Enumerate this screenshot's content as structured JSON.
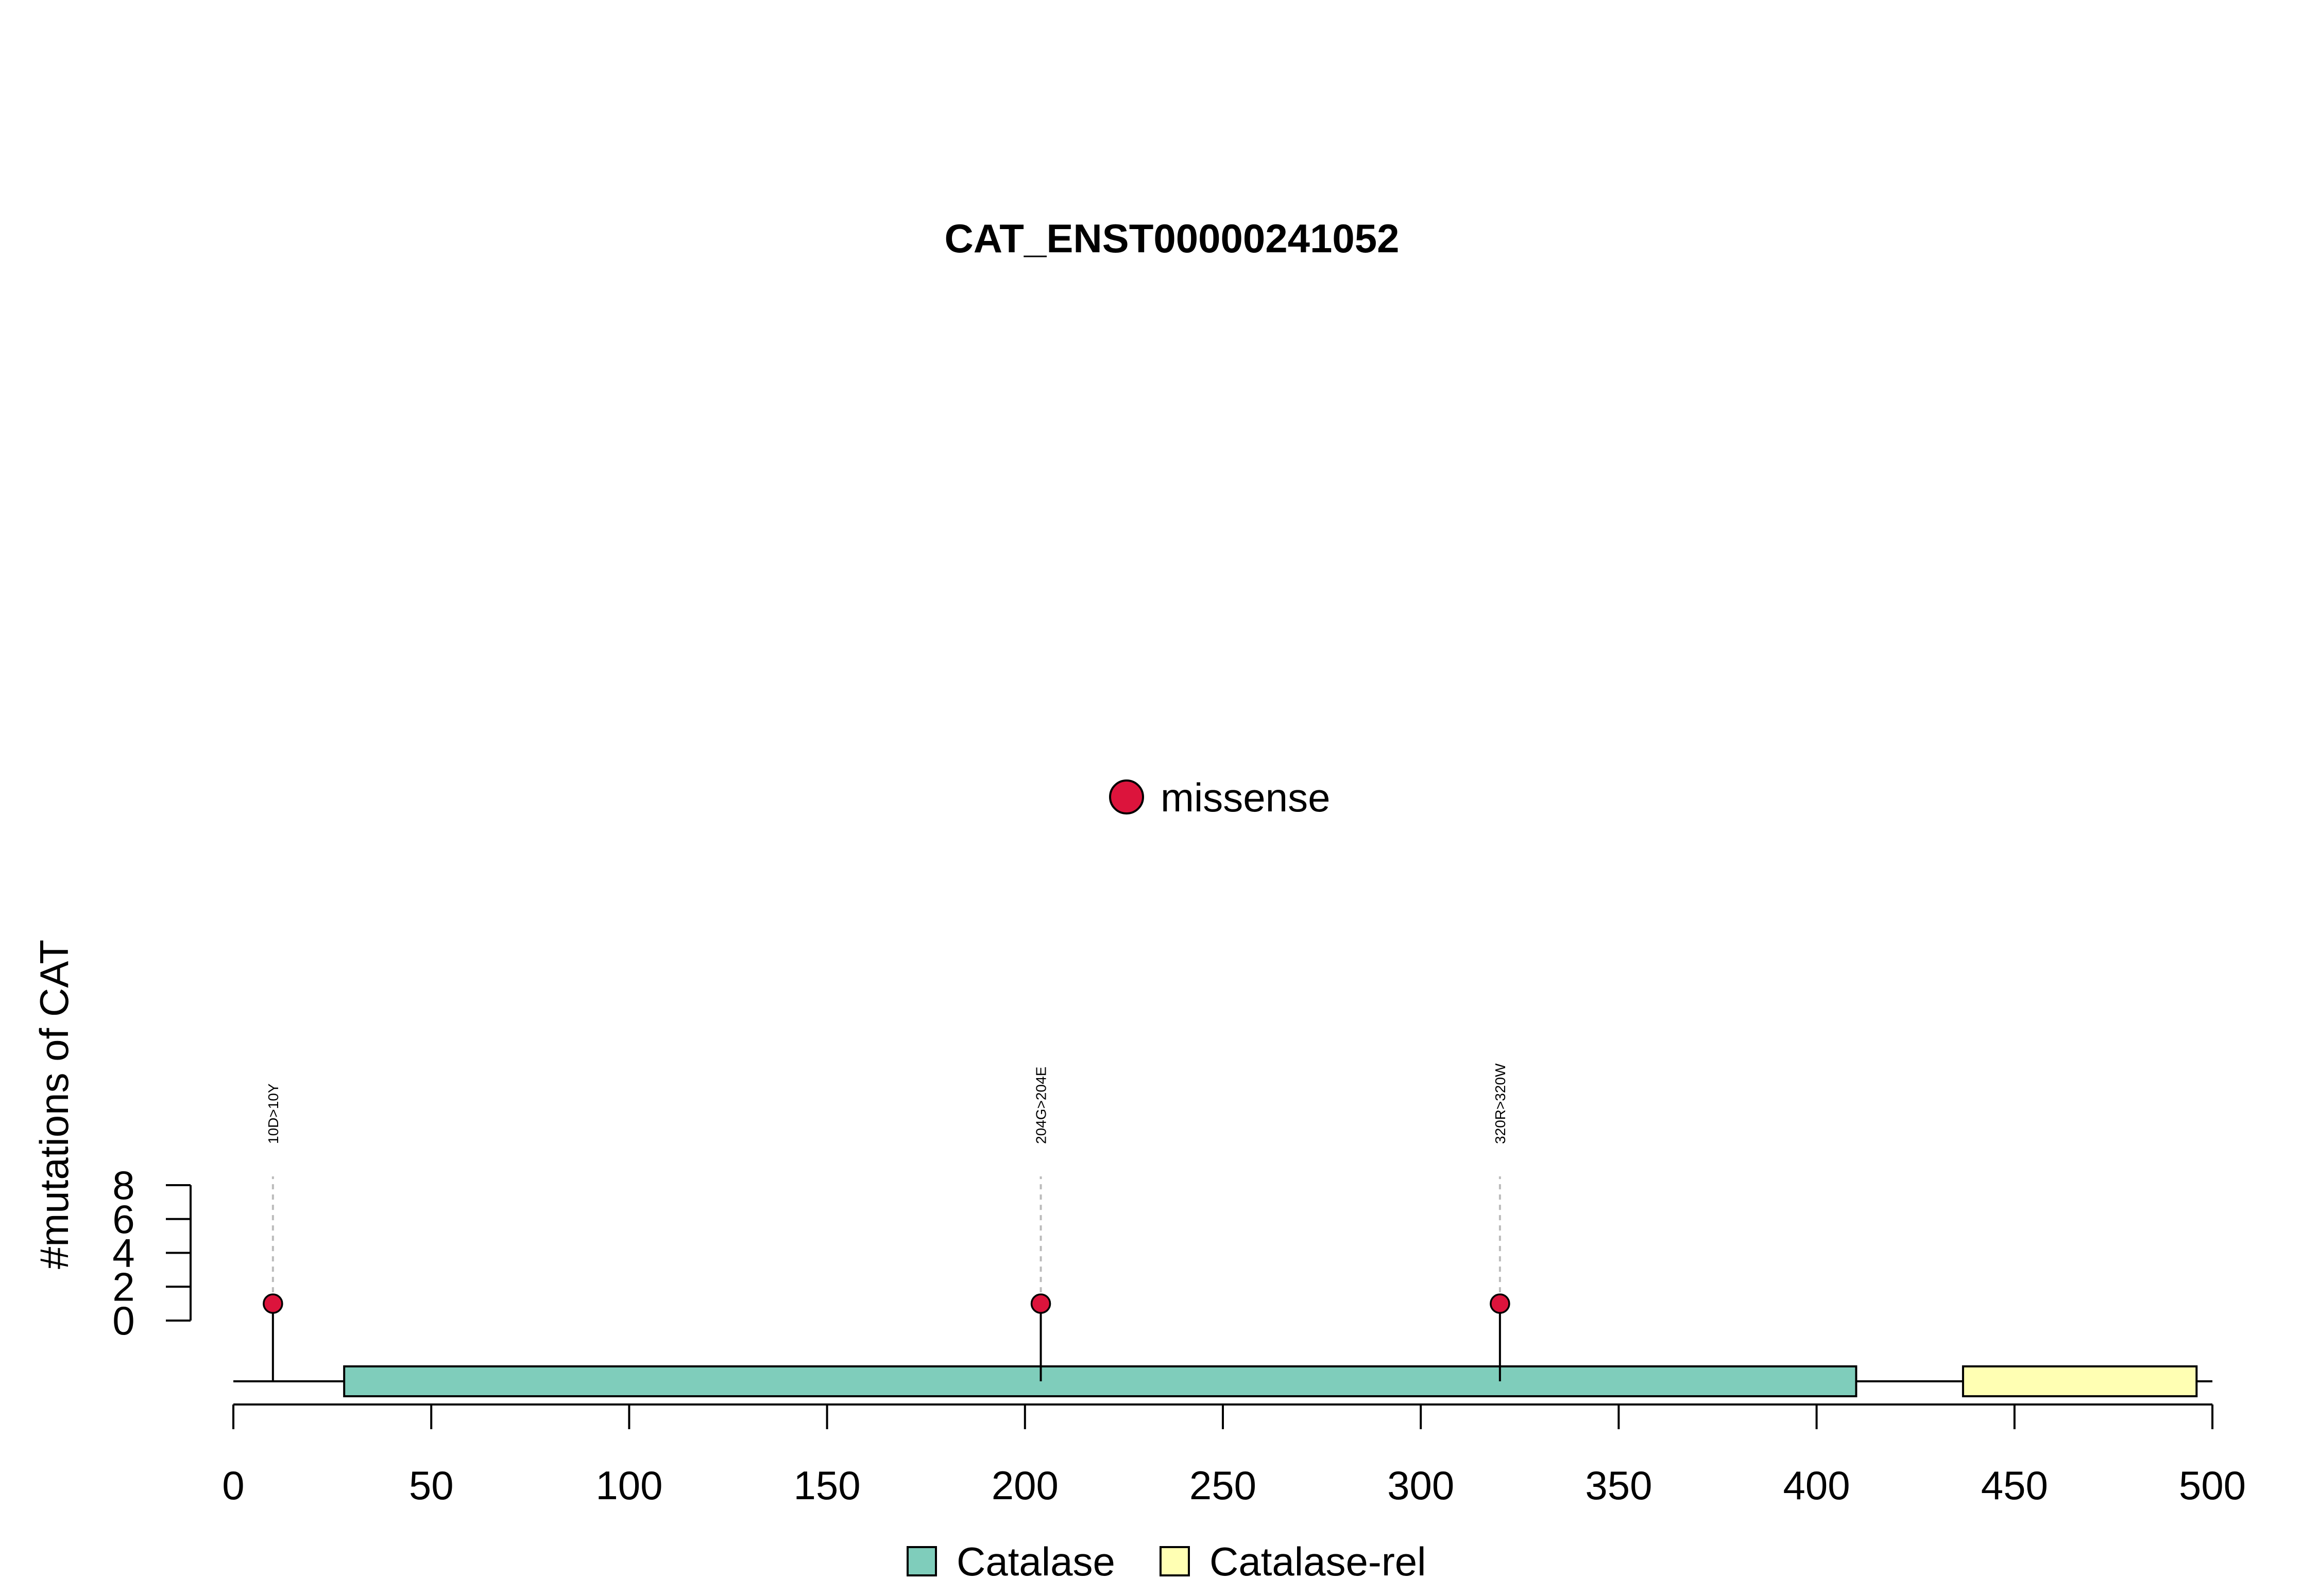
{
  "chart_data": {
    "type": "lollipop",
    "title": "CAT_ENST00000241052",
    "xlabel": "",
    "ylabel": "#mutations of CAT",
    "xlim": [
      0,
      500
    ],
    "ylim": [
      0,
      8
    ],
    "x_ticks": [
      0,
      50,
      100,
      150,
      200,
      250,
      300,
      350,
      400,
      450,
      500
    ],
    "y_ticks": [
      0,
      2,
      4,
      6,
      8
    ],
    "grid": false,
    "mutation_legend": [
      {
        "label": "missense",
        "color": "#DC143C"
      }
    ],
    "mutations": [
      {
        "position": 10,
        "count": 1,
        "label": "10D>10Y",
        "type": "missense"
      },
      {
        "position": 204,
        "count": 1,
        "label": "204G>204E",
        "type": "missense"
      },
      {
        "position": 320,
        "count": 1,
        "label": "320R>320W",
        "type": "missense"
      }
    ],
    "domains": [
      {
        "name": "Catalase",
        "start": 28,
        "end": 410,
        "color": "#7FCDBB"
      },
      {
        "name": "Catalase-rel",
        "start": 437,
        "end": 496,
        "color": "#FFFFB3"
      }
    ],
    "domain_legend": [
      {
        "label": "Catalase",
        "color": "#7FCDBB"
      },
      {
        "label": "Catalase-rel",
        "color": "#FFFFB3"
      }
    ],
    "protein_length": 500
  }
}
